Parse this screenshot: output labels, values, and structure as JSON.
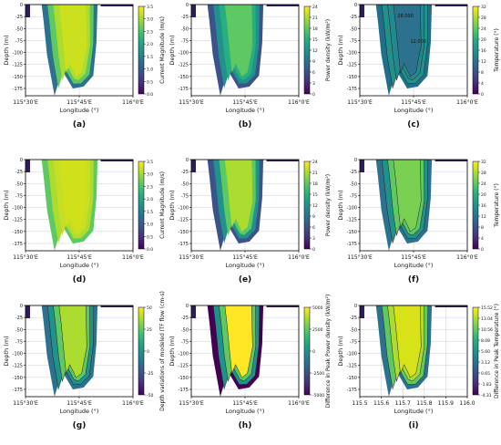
{
  "figure": {
    "panels": [
      {
        "label": "(a)",
        "colorbar_label": "Current Magnitude (m/s)",
        "colorbar_ticks": [
          "3.5",
          "3.0",
          "2.5",
          "2.0",
          "1.5",
          "1.0",
          "0.5",
          "0.0"
        ],
        "colormap": "viridis",
        "ylabel": "Depth (m)",
        "xlabel": "Longitude (°)",
        "yticks": [
          "0",
          "-25",
          "-50",
          "-75",
          "-100",
          "-125",
          "-150",
          "-175"
        ],
        "xticks": [
          "115°30'E",
          "115°45'E",
          "116°0'E"
        ]
      },
      {
        "label": "(b)",
        "colorbar_label": "Power density (kW/m²)",
        "colorbar_ticks": [
          "24",
          "21",
          "18",
          "15",
          "12",
          "9",
          "6",
          "3",
          "0"
        ],
        "colormap": "viridis",
        "ylabel": "Depth (m)",
        "xlabel": "Longitude (°)",
        "yticks": [
          "0",
          "-25",
          "-50",
          "-75",
          "-100",
          "-125",
          "-150",
          "-175"
        ],
        "xticks": [
          "115°30'E",
          "115°45'E",
          "116°0'E"
        ]
      },
      {
        "label": "(c)",
        "colorbar_label": "Temperature (°)",
        "colorbar_ticks": [
          "32",
          "28",
          "24",
          "20",
          "16",
          "12",
          "8",
          "4",
          "0"
        ],
        "colormap": "viridis",
        "ylabel": "Depth (m)",
        "xlabel": "Longitude (°)",
        "yticks": [
          "0",
          "-25",
          "-50",
          "-75",
          "-100",
          "-125",
          "-150",
          "-175"
        ],
        "xticks": [
          "115°30'E",
          "115°45'E",
          "116°0'E"
        ],
        "contour_labels": [
          "28.000",
          "12.000"
        ]
      },
      {
        "label": "(d)",
        "colorbar_label": "Current Magnitude (m/s)",
        "colorbar_ticks": [
          "3.5",
          "3.0",
          "2.5",
          "2.0",
          "1.5",
          "1.0",
          "0.5",
          "0.0"
        ],
        "colormap": "viridis",
        "ylabel": "Depth (m)",
        "xlabel": "Longitude (°)",
        "yticks": [
          "0",
          "-25",
          "-50",
          "-75",
          "-100",
          "-125",
          "-150",
          "-175"
        ],
        "xticks": [
          "115°30'E",
          "115°45'E",
          "116°0'E"
        ]
      },
      {
        "label": "(e)",
        "colorbar_label": "Power density (kW/m²)",
        "colorbar_ticks": [
          "24",
          "21",
          "18",
          "15",
          "12",
          "9",
          "6",
          "3",
          "0"
        ],
        "colormap": "viridis",
        "ylabel": "Depth (m)",
        "xlabel": "Longitude (°)",
        "yticks": [
          "0",
          "-25",
          "-50",
          "-75",
          "-100",
          "-125",
          "-150",
          "-175"
        ],
        "xticks": [
          "115°30'E",
          "115°45'E",
          "116°0'E"
        ]
      },
      {
        "label": "(f)",
        "colorbar_label": "Temperature (°)",
        "colorbar_ticks": [
          "32",
          "28",
          "24",
          "20",
          "16",
          "12",
          "8",
          "4",
          "0"
        ],
        "colormap": "viridis",
        "ylabel": "Depth (m)",
        "xlabel": "Longitude (°)",
        "yticks": [
          "0",
          "-25",
          "-50",
          "-75",
          "-100",
          "-125",
          "-150",
          "-175"
        ],
        "xticks": [
          "115°30'E",
          "115°45'E",
          "116°0'E"
        ]
      },
      {
        "label": "(g)",
        "colorbar_label": "Depth variations of modeled ITF flow (cm-s)",
        "colorbar_ticks": [
          "50",
          "25",
          "0",
          "-25",
          "-50"
        ],
        "colormap": "viridis",
        "ylabel": "Depth (m)",
        "xlabel": "Longitude (°)",
        "yticks": [
          "0",
          "-25",
          "-50",
          "-75",
          "-100",
          "-125",
          "-150",
          "-175"
        ],
        "xticks": [
          "115°30'E",
          "115°45'E",
          "116°0'E"
        ]
      },
      {
        "label": "(h)",
        "colorbar_label": "Difference in Peak Power density (kW/m²)",
        "colorbar_ticks": [
          "5000",
          "2500",
          "0",
          "-2500",
          "-5000"
        ],
        "colormap": "viridis",
        "ylabel": "Depth (m)",
        "xlabel": "Longitude (°)",
        "yticks": [
          "0",
          "-25",
          "-50",
          "-75",
          "-100",
          "-125",
          "-150",
          "-175"
        ],
        "xticks": [
          "115°30'E",
          "115°45'E",
          "116°0'E"
        ]
      },
      {
        "label": "(i)",
        "colorbar_label": "Difference in Peak Temperature (°)",
        "colorbar_ticks": [
          "15.52",
          "13.04",
          "10.56",
          "8.08",
          "5.60",
          "3.12",
          "0.65",
          "-1.83",
          "-4.31"
        ],
        "colormap": "viridis",
        "ylabel": "Depth (m)",
        "xlabel": "Longitude (°)",
        "yticks": [
          "0",
          "-25",
          "-50",
          "-75",
          "-100",
          "-125",
          "-150",
          "-175"
        ],
        "xticks": [
          "115.5",
          "115.6",
          "115.7",
          "115.8",
          "115.9",
          "116.0"
        ]
      }
    ]
  },
  "chart_data": [
    {
      "type": "heatmap",
      "panel": "(a)",
      "colorbar_label": "Current Magnitude (m/s)",
      "colorbar_range": [
        0,
        3.5
      ],
      "x_range": [
        115.5,
        116.0
      ],
      "ylim": [
        -185,
        0
      ],
      "xlabel": "Longitude (°)",
      "ylabel": "Depth (m)"
    },
    {
      "type": "heatmap",
      "panel": "(b)",
      "colorbar_label": "Power density (kW/m²)",
      "colorbar_range": [
        0,
        24
      ],
      "x_range": [
        115.5,
        116.0
      ],
      "ylim": [
        -185,
        0
      ],
      "xlabel": "Longitude (°)",
      "ylabel": "Depth (m)"
    },
    {
      "type": "heatmap",
      "panel": "(c)",
      "colorbar_label": "Temperature (°)",
      "colorbar_range": [
        0,
        32
      ],
      "x_range": [
        115.5,
        116.0
      ],
      "ylim": [
        -185,
        0
      ],
      "xlabel": "Longitude (°)",
      "ylabel": "Depth (m)"
    },
    {
      "type": "heatmap",
      "panel": "(d)",
      "colorbar_label": "Current Magnitude (m/s)",
      "colorbar_range": [
        0,
        3.5
      ],
      "x_range": [
        115.5,
        116.0
      ],
      "ylim": [
        -185,
        0
      ],
      "xlabel": "Longitude (°)",
      "ylabel": "Depth (m)"
    },
    {
      "type": "heatmap",
      "panel": "(e)",
      "colorbar_label": "Power density (kW/m²)",
      "colorbar_range": [
        0,
        24
      ],
      "x_range": [
        115.5,
        116.0
      ],
      "ylim": [
        -185,
        0
      ],
      "xlabel": "Longitude (°)",
      "ylabel": "Depth (m)"
    },
    {
      "type": "heatmap",
      "panel": "(f)",
      "colorbar_label": "Temperature (°)",
      "colorbar_range": [
        0,
        32
      ],
      "x_range": [
        115.5,
        116.0
      ],
      "ylim": [
        -185,
        0
      ],
      "xlabel": "Longitude (°)",
      "ylabel": "Depth (m)"
    },
    {
      "type": "heatmap",
      "panel": "(g)",
      "colorbar_label": "Depth variations of modeled ITF flow (cm-s)",
      "colorbar_range": [
        -50,
        50
      ],
      "x_range": [
        115.5,
        116.0
      ],
      "ylim": [
        -185,
        0
      ],
      "xlabel": "Longitude (°)",
      "ylabel": "Depth (m)"
    },
    {
      "type": "heatmap",
      "panel": "(h)",
      "colorbar_label": "Difference in Peak Power density (kW/m²)",
      "colorbar_range": [
        -5000,
        5000
      ],
      "x_range": [
        115.5,
        116.0
      ],
      "ylim": [
        -185,
        0
      ],
      "xlabel": "Longitude (°)",
      "ylabel": "Depth (m)"
    },
    {
      "type": "heatmap",
      "panel": "(i)",
      "colorbar_label": "Difference in Peak Temperature (°)",
      "colorbar_range": [
        -4.31,
        15.52
      ],
      "x_range": [
        115.5,
        116.0
      ],
      "ylim": [
        -185,
        0
      ],
      "xlabel": "Longitude (°)",
      "ylabel": "Depth (m)"
    }
  ]
}
